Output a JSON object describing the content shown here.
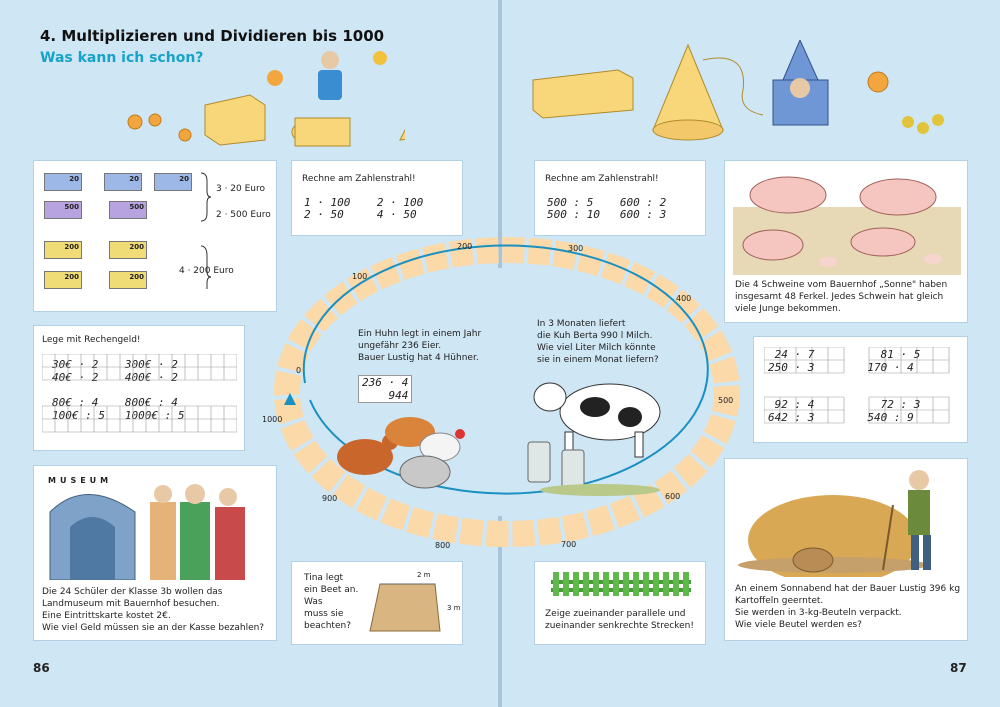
{
  "header": {
    "title": "4. Multiplizieren und Dividieren bis 1000",
    "subtitle": "Was kann ich schon?"
  },
  "page_numbers": {
    "left": "86",
    "right": "87"
  },
  "money": {
    "bill_20": "20",
    "bill_500": "500",
    "bill_200": "200",
    "labels": [
      "3 · 20 Euro",
      "2 · 500 Euro",
      "4 · 200 Euro"
    ]
  },
  "rechengeld": {
    "title": "Lege mit Rechengeld!",
    "rows": [
      [
        "30€ · 2",
        "300€ · 2"
      ],
      [
        "40€ · 2",
        "400€ · 2"
      ],
      [
        "80€ : 4",
        "800€ : 4"
      ],
      [
        "100€ : 5",
        "1000€ : 5"
      ]
    ]
  },
  "museum": {
    "sign": "MUSEUM",
    "text": [
      "Die 24 Schüler der Klasse 3b wollen das",
      "Landmuseum mit Bauernhof besuchen.",
      "Eine Eintrittskarte kostet 2€.",
      "Wie viel Geld müssen sie an der Kasse bezahlen?"
    ]
  },
  "zahlenstrahl_left": {
    "title": "Rechne am Zahlenstrahl!",
    "rows": [
      [
        "1 · 100",
        "2 · 100"
      ],
      [
        "2 · 50",
        "4 · 50"
      ]
    ]
  },
  "zahlenstrahl_right": {
    "title": "Rechne am Zahlenstrahl!",
    "rows": [
      [
        "500 : 5",
        "600 : 2"
      ],
      [
        "500 : 10",
        "600 : 3"
      ]
    ]
  },
  "number_ring": {
    "labels": [
      "0",
      "100",
      "200",
      "300",
      "400",
      "500",
      "600",
      "700",
      "800",
      "900",
      "1000"
    ]
  },
  "huhn": {
    "text": [
      "Ein Huhn legt in einem Jahr",
      "ungefähr 236 Eier.",
      "Bauer Lustig hat 4 Hühner."
    ],
    "calc": [
      "236 · 4",
      "944"
    ]
  },
  "kuh": {
    "text": [
      "In 3 Monaten liefert",
      "die Kuh Berta 990 l Milch.",
      "Wie viel Liter Milch könnte",
      "sie in einem Monat liefern?"
    ]
  },
  "beet": {
    "text": [
      "Tina legt",
      "ein Beet an.",
      "Was",
      "muss sie",
      "beachten?"
    ],
    "dim_w": "2 m",
    "dim_h": "3 m"
  },
  "zaun": {
    "text": [
      "Zeige zueinander parallele und",
      "zueinander senkrechte Strecken!"
    ]
  },
  "schweine": {
    "text": [
      "Die 4 Schweine vom Bauernhof „Sonne\" haben",
      "insgesamt 48 Ferkel. Jedes Schwein hat gleich",
      "viele Junge bekommen."
    ]
  },
  "rechnen": {
    "rows": [
      [
        "24 · 7",
        "81 · 5"
      ],
      [
        "250 · 3",
        "170 · 4"
      ],
      [
        "92 : 4",
        "72 : 3"
      ],
      [
        "642 : 3",
        "540 : 9"
      ]
    ]
  },
  "kartoffeln": {
    "text": [
      "An einem Sonnabend hat der Bauer Lustig 396 kg",
      "Kartoffeln geerntet.",
      "Sie werden in 3-kg-Beuteln verpackt.",
      "Wie viele Beutel werden es?"
    ]
  },
  "colors": {
    "bg": "#cfe6f5",
    "accent": "#17a3c9",
    "ring": "#1a90c0",
    "cloud": "#fbd9a8"
  }
}
